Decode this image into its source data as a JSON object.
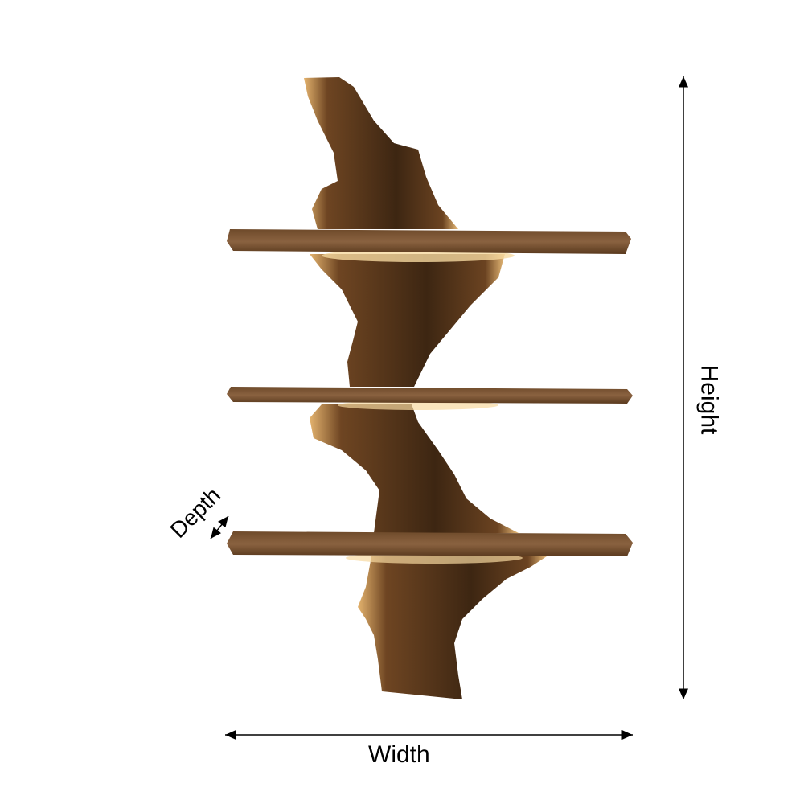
{
  "labels": {
    "width": "Width",
    "height": "Height",
    "depth": "Depth"
  },
  "colors": {
    "wood_dark": "#3a2412",
    "wood_mid": "#7a5230",
    "wood_light": "#e0b070",
    "glow": "#f6d9a0",
    "arrow": "#000000"
  }
}
